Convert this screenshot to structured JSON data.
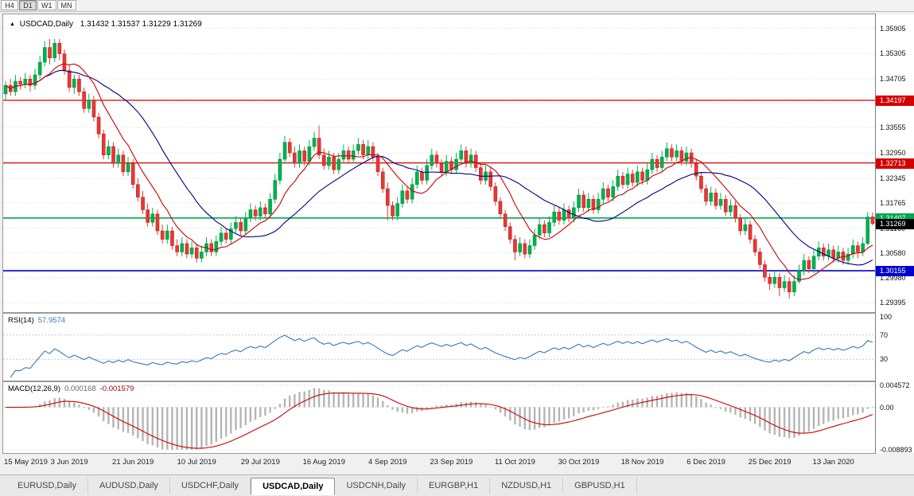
{
  "toolbar": {
    "periods": [
      {
        "label": "H4",
        "active": false
      },
      {
        "label": "D1",
        "active": true
      },
      {
        "label": "W1",
        "active": false
      },
      {
        "label": "MN",
        "active": false
      }
    ]
  },
  "chart": {
    "symbol_period": "USDCAD,Daily",
    "ohlc_text": "1.31432 1.31537 1.31229 1.31269",
    "open": "1.31432",
    "high": "1.31537",
    "low": "1.31229",
    "close": "1.31269"
  },
  "price_axis": [
    "1.35905",
    "1.35305",
    "1.34705",
    "1.34130",
    "1.33555",
    "1.32950",
    "1.32345",
    "1.31765",
    "1.31160",
    "1.30580",
    "1.29980",
    "1.29395"
  ],
  "hlines": [
    {
      "value": 1.34197,
      "label": "1.34197",
      "color": "#d40000",
      "width": 1.2
    },
    {
      "value": 1.32713,
      "label": "1.32713",
      "color": "#d40000",
      "width": 1.2
    },
    {
      "value": 1.31407,
      "label": "1.31407",
      "color": "#00a651",
      "width": 1.6
    },
    {
      "value": 1.30155,
      "label": "1.30155",
      "color": "#0000cc",
      "width": 1.6
    }
  ],
  "current_price": {
    "label": "1.31269",
    "value": 1.31269,
    "bg": "#000000"
  },
  "rsi": {
    "name": "RSI(14)",
    "value": "57.9574",
    "levels": [
      {
        "label": "100",
        "value": 100
      },
      {
        "label": "70",
        "value": 70
      },
      {
        "label": "30",
        "value": 30
      }
    ],
    "level_lines": [
      70,
      30
    ]
  },
  "macd": {
    "name": "MACD(12,26,9)",
    "main_value": "0.000168",
    "signal_value": "-0.001579",
    "axis": [
      {
        "label": "0.004572",
        "value": 0.004572
      },
      {
        "label": "0.00",
        "value": 0
      },
      {
        "label": "-0.008893",
        "value": -0.008893
      }
    ]
  },
  "date_axis": {
    "labels": [
      "15 May 2019",
      "3 Jun 2019",
      "21 Jun 2019",
      "10 Jul 2019",
      "29 Jul 2019",
      "16 Aug 2019",
      "4 Sep 2019",
      "23 Sep 2019",
      "11 Oct 2019",
      "30 Oct 2019",
      "18 Nov 2019",
      "6 Dec 2019",
      "25 Dec 2019",
      "13 Jan 2020"
    ],
    "indices": [
      0,
      13,
      26,
      39,
      52,
      65,
      78,
      91,
      104,
      117,
      130,
      143,
      156,
      169
    ]
  },
  "tabbar": {
    "tabs": [
      {
        "label": "EURUSD,Daily",
        "active": false
      },
      {
        "label": "AUDUSD,Daily",
        "active": false
      },
      {
        "label": "USDCHF,Daily",
        "active": false
      },
      {
        "label": "USDCAD,Daily",
        "active": true
      },
      {
        "label": "USDCNH,Daily",
        "active": false
      },
      {
        "label": "EURGBP,H1",
        "active": false
      },
      {
        "label": "NZDUSD,H1",
        "active": false
      },
      {
        "label": "GBPUSD,H1",
        "active": false
      }
    ]
  },
  "chart_data": {
    "type": "candlestick",
    "symbol": "USDCAD",
    "timeframe": "Daily",
    "title": "USDCAD,Daily 1.31432 1.31537 1.31229 1.31269",
    "indicators": {
      "rsi_period": 14,
      "macd": [
        12,
        26,
        9
      ],
      "ma_fast_period": 9,
      "ma_slow_period": 22
    },
    "colors": {
      "up": "#00b050",
      "up_border": "#008f3e",
      "down": "#e53935",
      "down_border": "#b71c1c",
      "ma_fast": "#cc0000",
      "ma_slow": "#000080",
      "rsi": "#3b77b5",
      "macd_hist": "#b5b5b5",
      "macd_signal": "#cc0000",
      "grid": "#dcdcdc"
    },
    "candles": [
      [
        1.3435,
        1.3465,
        1.342,
        1.3455
      ],
      [
        1.3455,
        1.347,
        1.343,
        1.344
      ],
      [
        1.344,
        1.348,
        1.343,
        1.3465
      ],
      [
        1.3465,
        1.3475,
        1.3445,
        1.3458
      ],
      [
        1.3458,
        1.3485,
        1.3448,
        1.347
      ],
      [
        1.347,
        1.348,
        1.344,
        1.3455
      ],
      [
        1.3455,
        1.3495,
        1.3445,
        1.348
      ],
      [
        1.348,
        1.3525,
        1.347,
        1.351
      ],
      [
        1.351,
        1.356,
        1.35,
        1.3545
      ],
      [
        1.3545,
        1.3565,
        1.3505,
        1.352
      ],
      [
        1.352,
        1.3565,
        1.351,
        1.3555
      ],
      [
        1.3555,
        1.3565,
        1.3515,
        1.353
      ],
      [
        1.353,
        1.354,
        1.348,
        1.349
      ],
      [
        1.349,
        1.3505,
        1.344,
        1.345
      ],
      [
        1.345,
        1.348,
        1.3435,
        1.347
      ],
      [
        1.347,
        1.348,
        1.343,
        1.344
      ],
      [
        1.344,
        1.345,
        1.339,
        1.34
      ],
      [
        1.34,
        1.3435,
        1.339,
        1.342
      ],
      [
        1.342,
        1.343,
        1.337,
        1.338
      ],
      [
        1.338,
        1.339,
        1.333,
        1.334
      ],
      [
        1.334,
        1.335,
        1.328,
        1.329
      ],
      [
        1.329,
        1.3325,
        1.328,
        1.331
      ],
      [
        1.331,
        1.332,
        1.326,
        1.327
      ],
      [
        1.327,
        1.3305,
        1.326,
        1.329
      ],
      [
        1.329,
        1.33,
        1.324,
        1.325
      ],
      [
        1.325,
        1.3285,
        1.324,
        1.327
      ],
      [
        1.327,
        1.328,
        1.321,
        1.322
      ],
      [
        1.322,
        1.3235,
        1.318,
        1.319
      ],
      [
        1.319,
        1.3205,
        1.315,
        1.316
      ],
      [
        1.316,
        1.3175,
        1.312,
        1.313
      ],
      [
        1.313,
        1.3165,
        1.312,
        1.315
      ],
      [
        1.315,
        1.316,
        1.31,
        1.311
      ],
      [
        1.311,
        1.3125,
        1.308,
        1.309
      ],
      [
        1.309,
        1.3125,
        1.308,
        1.311
      ],
      [
        1.311,
        1.312,
        1.3065,
        1.3075
      ],
      [
        1.3075,
        1.309,
        1.305,
        1.306
      ],
      [
        1.306,
        1.3095,
        1.305,
        1.308
      ],
      [
        1.308,
        1.309,
        1.3045,
        1.3055
      ],
      [
        1.3055,
        1.3085,
        1.3045,
        1.307
      ],
      [
        1.307,
        1.308,
        1.3035,
        1.3045
      ],
      [
        1.3045,
        1.3075,
        1.3035,
        1.306
      ],
      [
        1.306,
        1.3095,
        1.305,
        1.308
      ],
      [
        1.308,
        1.309,
        1.305,
        1.306
      ],
      [
        1.306,
        1.3099,
        1.305,
        1.3085
      ],
      [
        1.3085,
        1.312,
        1.3075,
        1.3105
      ],
      [
        1.3105,
        1.3115,
        1.308,
        1.309
      ],
      [
        1.309,
        1.313,
        1.308,
        1.3115
      ],
      [
        1.3115,
        1.3145,
        1.3105,
        1.313
      ],
      [
        1.313,
        1.314,
        1.31,
        1.311
      ],
      [
        1.311,
        1.3155,
        1.31,
        1.314
      ],
      [
        1.314,
        1.3175,
        1.313,
        1.316
      ],
      [
        1.316,
        1.317,
        1.3135,
        1.3145
      ],
      [
        1.3145,
        1.318,
        1.3135,
        1.3165
      ],
      [
        1.3165,
        1.3175,
        1.314,
        1.315
      ],
      [
        1.315,
        1.32,
        1.314,
        1.3185
      ],
      [
        1.3185,
        1.3245,
        1.3175,
        1.323
      ],
      [
        1.323,
        1.3295,
        1.322,
        1.328
      ],
      [
        1.328,
        1.3335,
        1.327,
        1.332
      ],
      [
        1.332,
        1.333,
        1.3285,
        1.3295
      ],
      [
        1.3295,
        1.331,
        1.326,
        1.327
      ],
      [
        1.327,
        1.3315,
        1.326,
        1.33
      ],
      [
        1.33,
        1.331,
        1.3265,
        1.3275
      ],
      [
        1.3275,
        1.3325,
        1.3265,
        1.331
      ],
      [
        1.331,
        1.3345,
        1.33,
        1.333
      ],
      [
        1.333,
        1.336,
        1.328,
        1.329
      ],
      [
        1.329,
        1.3305,
        1.3255,
        1.3265
      ],
      [
        1.3265,
        1.33,
        1.3255,
        1.3285
      ],
      [
        1.3285,
        1.3295,
        1.3245,
        1.3255
      ],
      [
        1.3255,
        1.3295,
        1.3245,
        1.328
      ],
      [
        1.328,
        1.3315,
        1.327,
        1.33
      ],
      [
        1.33,
        1.331,
        1.327,
        1.328
      ],
      [
        1.328,
        1.3315,
        1.327,
        1.33
      ],
      [
        1.33,
        1.333,
        1.329,
        1.3315
      ],
      [
        1.3315,
        1.3325,
        1.328,
        1.329
      ],
      [
        1.329,
        1.3325,
        1.328,
        1.331
      ],
      [
        1.331,
        1.332,
        1.3275,
        1.3285
      ],
      [
        1.3285,
        1.3295,
        1.324,
        1.325
      ],
      [
        1.325,
        1.326,
        1.32,
        1.321
      ],
      [
        1.321,
        1.3225,
        1.3135,
        1.317
      ],
      [
        1.317,
        1.318,
        1.3135,
        1.3145
      ],
      [
        1.3145,
        1.319,
        1.3135,
        1.3175
      ],
      [
        1.3175,
        1.322,
        1.3165,
        1.3205
      ],
      [
        1.3205,
        1.3215,
        1.3175,
        1.3185
      ],
      [
        1.3185,
        1.3235,
        1.3175,
        1.322
      ],
      [
        1.322,
        1.3265,
        1.321,
        1.325
      ],
      [
        1.325,
        1.326,
        1.322,
        1.323
      ],
      [
        1.323,
        1.328,
        1.322,
        1.3265
      ],
      [
        1.3265,
        1.3305,
        1.3255,
        1.329
      ],
      [
        1.329,
        1.33,
        1.326,
        1.327
      ],
      [
        1.327,
        1.328,
        1.324,
        1.325
      ],
      [
        1.325,
        1.329,
        1.324,
        1.3275
      ],
      [
        1.3275,
        1.3285,
        1.3245,
        1.3255
      ],
      [
        1.3255,
        1.3295,
        1.3245,
        1.328
      ],
      [
        1.328,
        1.3315,
        1.327,
        1.33
      ],
      [
        1.33,
        1.331,
        1.326,
        1.327
      ],
      [
        1.327,
        1.3305,
        1.326,
        1.329
      ],
      [
        1.329,
        1.33,
        1.325,
        1.326
      ],
      [
        1.326,
        1.327,
        1.322,
        1.323
      ],
      [
        1.323,
        1.3265,
        1.322,
        1.325
      ],
      [
        1.325,
        1.326,
        1.3205,
        1.3215
      ],
      [
        1.3215,
        1.3225,
        1.317,
        1.318
      ],
      [
        1.318,
        1.319,
        1.314,
        1.315
      ],
      [
        1.315,
        1.316,
        1.311,
        1.312
      ],
      [
        1.312,
        1.313,
        1.308,
        1.309
      ],
      [
        1.309,
        1.31,
        1.304,
        1.306
      ],
      [
        1.306,
        1.3095,
        1.305,
        1.308
      ],
      [
        1.308,
        1.309,
        1.3045,
        1.3055
      ],
      [
        1.3055,
        1.309,
        1.3045,
        1.3075
      ],
      [
        1.3075,
        1.3115,
        1.3065,
        1.31
      ],
      [
        1.31,
        1.314,
        1.309,
        1.3125
      ],
      [
        1.3125,
        1.3135,
        1.3095,
        1.3105
      ],
      [
        1.3105,
        1.3145,
        1.3095,
        1.313
      ],
      [
        1.313,
        1.317,
        1.312,
        1.3155
      ],
      [
        1.3155,
        1.3165,
        1.3125,
        1.3135
      ],
      [
        1.3135,
        1.3175,
        1.3125,
        1.316
      ],
      [
        1.316,
        1.317,
        1.313,
        1.314
      ],
      [
        1.314,
        1.318,
        1.313,
        1.3165
      ],
      [
        1.3165,
        1.321,
        1.3155,
        1.3195
      ],
      [
        1.3195,
        1.3205,
        1.3155,
        1.3165
      ],
      [
        1.3165,
        1.32,
        1.3155,
        1.3185
      ],
      [
        1.3185,
        1.3195,
        1.315,
        1.316
      ],
      [
        1.316,
        1.32,
        1.315,
        1.3185
      ],
      [
        1.3185,
        1.3225,
        1.3175,
        1.321
      ],
      [
        1.321,
        1.322,
        1.318,
        1.319
      ],
      [
        1.319,
        1.323,
        1.318,
        1.3215
      ],
      [
        1.3215,
        1.3255,
        1.3205,
        1.324
      ],
      [
        1.324,
        1.325,
        1.321,
        1.322
      ],
      [
        1.322,
        1.326,
        1.321,
        1.3245
      ],
      [
        1.3245,
        1.3255,
        1.3215,
        1.3225
      ],
      [
        1.3225,
        1.3265,
        1.3215,
        1.325
      ],
      [
        1.325,
        1.326,
        1.322,
        1.323
      ],
      [
        1.323,
        1.327,
        1.322,
        1.3255
      ],
      [
        1.3255,
        1.3295,
        1.3245,
        1.328
      ],
      [
        1.328,
        1.329,
        1.325,
        1.326
      ],
      [
        1.326,
        1.33,
        1.325,
        1.3285
      ],
      [
        1.3285,
        1.332,
        1.3275,
        1.3305
      ],
      [
        1.3305,
        1.3315,
        1.3275,
        1.3285
      ],
      [
        1.3285,
        1.3315,
        1.3275,
        1.33
      ],
      [
        1.33,
        1.331,
        1.3265,
        1.3275
      ],
      [
        1.3275,
        1.331,
        1.3265,
        1.3295
      ],
      [
        1.3295,
        1.3305,
        1.326,
        1.327
      ],
      [
        1.327,
        1.328,
        1.323,
        1.324
      ],
      [
        1.324,
        1.325,
        1.32,
        1.321
      ],
      [
        1.321,
        1.322,
        1.317,
        1.318
      ],
      [
        1.318,
        1.3215,
        1.317,
        1.32
      ],
      [
        1.32,
        1.321,
        1.316,
        1.317
      ],
      [
        1.317,
        1.32,
        1.316,
        1.3185
      ],
      [
        1.3185,
        1.3195,
        1.3145,
        1.3155
      ],
      [
        1.3155,
        1.3185,
        1.3145,
        1.317
      ],
      [
        1.317,
        1.318,
        1.313,
        1.314
      ],
      [
        1.314,
        1.315,
        1.31,
        1.311
      ],
      [
        1.311,
        1.314,
        1.31,
        1.3125
      ],
      [
        1.3125,
        1.3135,
        1.308,
        1.309
      ],
      [
        1.309,
        1.31,
        1.305,
        1.306
      ],
      [
        1.306,
        1.307,
        1.302,
        1.303
      ],
      [
        1.303,
        1.304,
        1.299,
        1.3
      ],
      [
        1.3,
        1.301,
        1.297,
        1.2985
      ],
      [
        1.2985,
        1.3015,
        1.2975,
        1.3
      ],
      [
        1.3,
        1.301,
        1.2955,
        1.2975
      ],
      [
        1.2975,
        1.3005,
        1.2965,
        1.299
      ],
      [
        1.299,
        1.3,
        1.295,
        1.2965
      ],
      [
        1.2965,
        1.3005,
        1.2955,
        1.299
      ],
      [
        1.299,
        1.303,
        1.2985,
        1.3015
      ],
      [
        1.3015,
        1.3055,
        1.3005,
        1.304
      ],
      [
        1.304,
        1.305,
        1.301,
        1.302
      ],
      [
        1.302,
        1.3065,
        1.301,
        1.305
      ],
      [
        1.305,
        1.3085,
        1.304,
        1.307
      ],
      [
        1.307,
        1.308,
        1.304,
        1.305
      ],
      [
        1.305,
        1.308,
        1.304,
        1.3065
      ],
      [
        1.3065,
        1.3075,
        1.3035,
        1.3045
      ],
      [
        1.3045,
        1.3075,
        1.3035,
        1.306
      ],
      [
        1.306,
        1.307,
        1.303,
        1.304
      ],
      [
        1.304,
        1.307,
        1.303,
        1.3055
      ],
      [
        1.3055,
        1.309,
        1.3045,
        1.3075
      ],
      [
        1.3075,
        1.3085,
        1.3045,
        1.306
      ],
      [
        1.306,
        1.3095,
        1.305,
        1.308
      ],
      [
        1.308,
        1.3155,
        1.3075,
        1.3143
      ],
      [
        1.31432,
        1.31537,
        1.31229,
        1.31269
      ]
    ]
  }
}
